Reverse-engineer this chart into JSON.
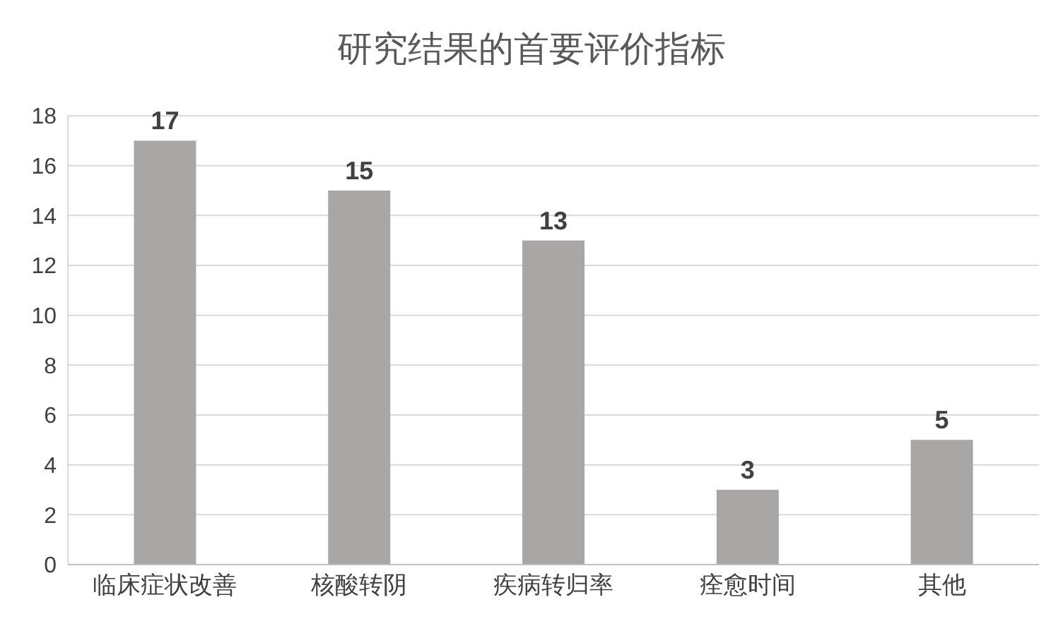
{
  "chart_data": {
    "type": "bar",
    "title": "研究结果的首要评价指标",
    "categories": [
      "临床症状改善",
      "核酸转阴",
      "疾病转归率",
      "痊愈时间",
      "其他"
    ],
    "values": [
      17,
      15,
      13,
      3,
      5
    ],
    "color": "#a9a6a6",
    "ylim": [
      0,
      18
    ],
    "yticks": [
      0,
      2,
      4,
      6,
      8,
      10,
      12,
      14,
      16,
      18
    ],
    "grid": "y",
    "data_labels": true,
    "legend": false
  }
}
